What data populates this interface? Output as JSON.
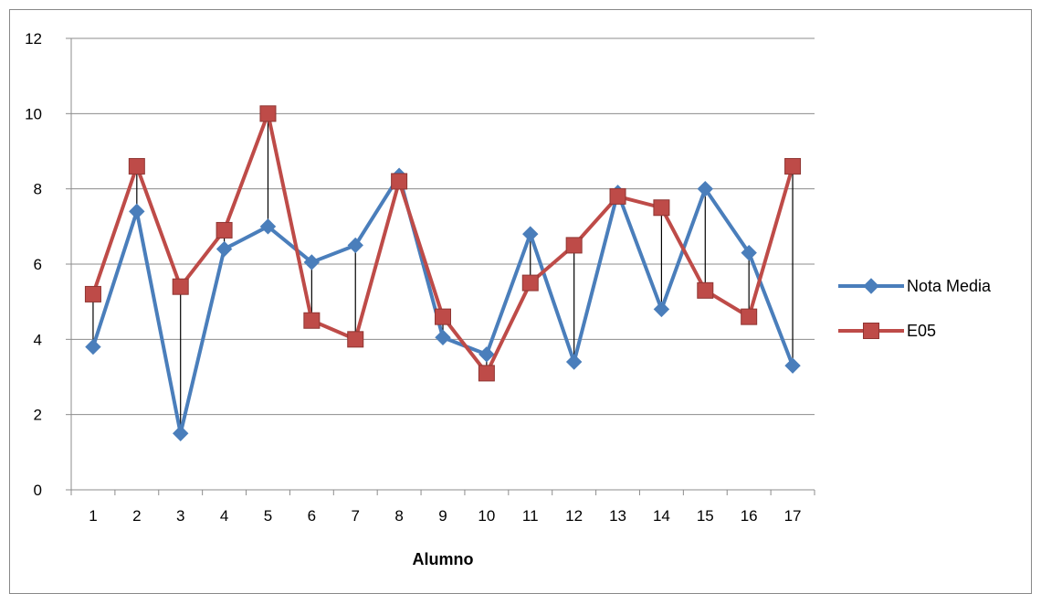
{
  "chart_data": {
    "type": "line",
    "title": "",
    "xlabel": "Alumno",
    "ylabel": "",
    "categories": [
      "1",
      "2",
      "3",
      "4",
      "5",
      "6",
      "7",
      "8",
      "9",
      "10",
      "11",
      "12",
      "13",
      "14",
      "15",
      "16",
      "17"
    ],
    "ylim": [
      0,
      12
    ],
    "yticks": [
      0,
      2,
      4,
      6,
      8,
      10,
      12
    ],
    "grid": true,
    "legend_position": "right",
    "high_low_lines": true,
    "series": [
      {
        "name": "Nota Media",
        "color": "#4A7EBB",
        "marker": "diamond",
        "values": [
          3.8,
          7.4,
          1.5,
          6.4,
          7.0,
          6.05,
          6.5,
          8.35,
          4.05,
          3.6,
          6.8,
          3.4,
          7.9,
          4.8,
          8.0,
          6.3,
          3.3
        ]
      },
      {
        "name": "E05",
        "color": "#BE4B48",
        "marker": "square",
        "values": [
          5.2,
          8.6,
          5.4,
          6.9,
          10.0,
          4.5,
          4.0,
          8.2,
          4.6,
          3.1,
          5.5,
          6.5,
          7.8,
          7.5,
          5.3,
          4.6,
          8.6
        ]
      }
    ]
  }
}
